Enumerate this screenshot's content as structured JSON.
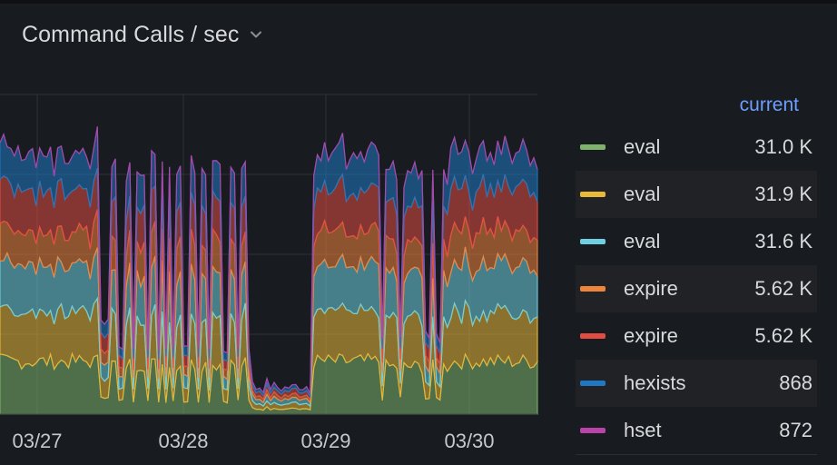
{
  "panel": {
    "title": "Command Calls / sec"
  },
  "icons": {
    "title_menu": "chevron-down-icon"
  },
  "chart_data": {
    "type": "area",
    "stacked": true,
    "title": "Command Calls / sec",
    "x_ticks": [
      "03/27",
      "03/28",
      "03/29",
      "03/30"
    ],
    "grid": true,
    "legend_placement": "right",
    "legend_column": "current",
    "series": [
      {
        "name": "eval",
        "color": "#7eb26d",
        "current": "31.0 K",
        "level": 31000
      },
      {
        "name": "eval",
        "color": "#eab839",
        "current": "31.9 K",
        "level": 31900
      },
      {
        "name": "eval",
        "color": "#6ed0e0",
        "current": "31.6 K",
        "level": 31600
      },
      {
        "name": "expire",
        "color": "#ef843c",
        "current": "5.62 K",
        "level": 5620
      },
      {
        "name": "expire",
        "color": "#e24d42",
        "current": "5.62 K",
        "level": 5620
      },
      {
        "name": "hexists",
        "color": "#1f78c1",
        "current": "868",
        "level": 868
      },
      {
        "name": "hset",
        "color": "#ba43a9",
        "current": "872",
        "level": 872
      }
    ]
  },
  "legend": {
    "header": "current",
    "rows": [
      {
        "name": "eval",
        "value": "31.0 K"
      },
      {
        "name": "eval",
        "value": "31.9 K"
      },
      {
        "name": "eval",
        "value": "31.6 K"
      },
      {
        "name": "expire",
        "value": "5.62 K"
      },
      {
        "name": "expire",
        "value": "5.62 K"
      },
      {
        "name": "hexists",
        "value": "868"
      },
      {
        "name": "hset",
        "value": "872"
      }
    ]
  }
}
